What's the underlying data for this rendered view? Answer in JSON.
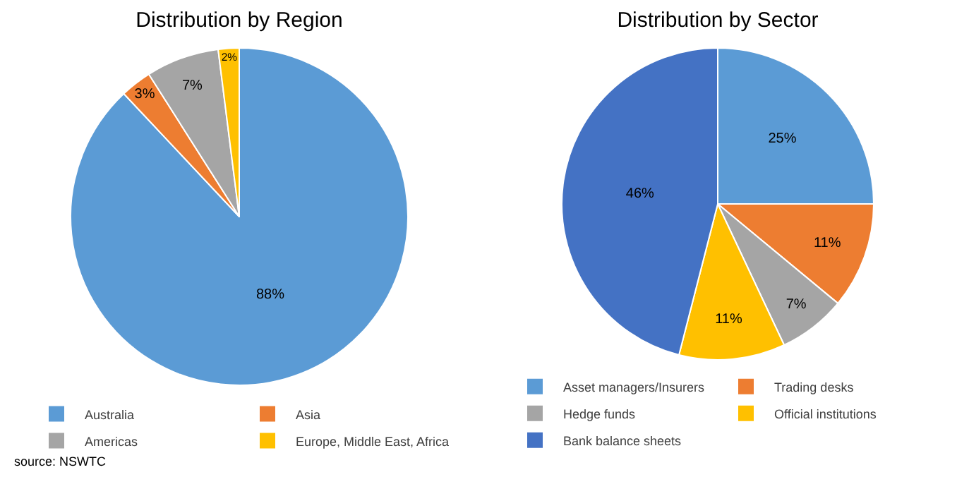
{
  "chart_data": [
    {
      "type": "pie",
      "title": "Distribution by Region",
      "categories": [
        "Australia",
        "Asia",
        "Americas",
        "Europe, Middle East, Africa"
      ],
      "values": [
        88,
        3,
        7,
        2
      ],
      "value_labels": [
        "88%",
        "3%",
        "7%",
        "2%"
      ],
      "colors": [
        "#5b9bd5",
        "#ed7d31",
        "#a5a5a5",
        "#ffc000"
      ],
      "legend": "bottom",
      "annotations": [
        "source: NSWTC"
      ]
    },
    {
      "type": "pie",
      "title": "Distribution by Sector",
      "categories": [
        "Asset managers/Insurers",
        "Trading desks",
        "Hedge funds",
        "Official institutions",
        "Bank balance sheets"
      ],
      "values": [
        25,
        11,
        7,
        11,
        46
      ],
      "value_labels": [
        "25%",
        "11%",
        "7%",
        "11%",
        "46%"
      ],
      "colors": [
        "#5b9bd5",
        "#ed7d31",
        "#a5a5a5",
        "#ffc000",
        "#4472c4"
      ],
      "legend": "bottom"
    }
  ]
}
